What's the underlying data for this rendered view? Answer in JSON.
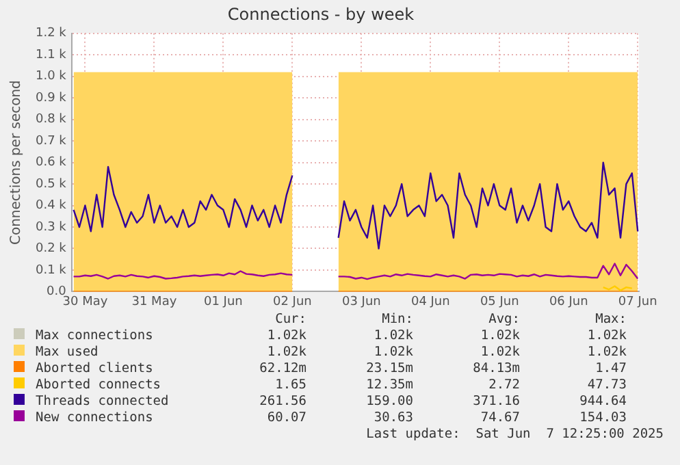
{
  "chart_data": {
    "type": "line",
    "title": "Connections - by week",
    "ylabel": "Connections per second",
    "x": [
      "2025-05-30T08:00",
      "2025-05-30T10:00",
      "2025-05-30T12:00",
      "2025-05-30T14:00",
      "2025-05-30T16:00",
      "2025-05-30T18:00",
      "2025-05-30T20:00",
      "2025-05-30T22:00",
      "2025-05-31T00:00",
      "2025-05-31T02:00",
      "2025-05-31T04:00",
      "2025-05-31T06:00",
      "2025-05-31T08:00",
      "2025-05-31T10:00",
      "2025-05-31T12:00",
      "2025-05-31T14:00",
      "2025-05-31T16:00",
      "2025-05-31T18:00",
      "2025-05-31T20:00",
      "2025-05-31T22:00",
      "2025-06-01T00:00",
      "2025-06-01T02:00",
      "2025-06-01T04:00",
      "2025-06-01T06:00",
      "2025-06-01T08:00",
      "2025-06-01T10:00",
      "2025-06-01T12:00",
      "2025-06-01T14:00",
      "2025-06-01T16:00",
      "2025-06-01T18:00",
      "2025-06-01T20:00",
      "2025-06-01T22:00",
      "2025-06-02T00:00",
      "2025-06-02T02:00",
      "2025-06-02T04:00",
      "2025-06-02T06:00",
      "2025-06-02T08:00",
      "2025-06-02T10:00",
      "2025-06-02T12:00",
      "2025-06-02T14:00",
      "2025-06-02T16:00",
      "2025-06-02T18:00",
      "2025-06-02T20:00",
      "2025-06-02T22:00",
      "2025-06-03T00:00",
      "2025-06-03T02:00",
      "2025-06-03T04:00",
      "2025-06-03T06:00",
      "2025-06-03T08:00",
      "2025-06-03T10:00",
      "2025-06-03T12:00",
      "2025-06-03T14:00",
      "2025-06-03T16:00",
      "2025-06-03T18:00",
      "2025-06-03T20:00",
      "2025-06-03T22:00",
      "2025-06-04T00:00",
      "2025-06-04T02:00",
      "2025-06-04T04:00",
      "2025-06-04T06:00",
      "2025-06-04T08:00",
      "2025-06-04T10:00",
      "2025-06-04T12:00",
      "2025-06-04T14:00",
      "2025-06-04T16:00",
      "2025-06-04T18:00",
      "2025-06-04T20:00",
      "2025-06-04T22:00",
      "2025-06-05T00:00",
      "2025-06-05T02:00",
      "2025-06-05T04:00",
      "2025-06-05T06:00",
      "2025-06-05T08:00",
      "2025-06-05T10:00",
      "2025-06-05T12:00",
      "2025-06-05T14:00",
      "2025-06-05T16:00",
      "2025-06-05T18:00",
      "2025-06-05T20:00",
      "2025-06-05T22:00",
      "2025-06-06T00:00",
      "2025-06-06T02:00",
      "2025-06-06T04:00",
      "2025-06-06T06:00",
      "2025-06-06T08:00",
      "2025-06-06T10:00",
      "2025-06-06T12:00",
      "2025-06-06T14:00",
      "2025-06-06T16:00",
      "2025-06-06T18:00",
      "2025-06-06T20:00",
      "2025-06-06T22:00",
      "2025-06-07T00:00",
      "2025-06-07T02:00",
      "2025-06-07T04:00",
      "2025-06-07T06:00",
      "2025-06-07T08:00",
      "2025-06-07T10:00",
      "2025-06-07T12:00"
    ],
    "series": [
      {
        "name": "Max connections",
        "color": "#ccccbb",
        "type": "line",
        "values": [
          null,
          null,
          null,
          null,
          null,
          null,
          null,
          null,
          null,
          null,
          null,
          null,
          null,
          null,
          null,
          null,
          null,
          null,
          null,
          null,
          null,
          null,
          null,
          null,
          null,
          null,
          null,
          null,
          null,
          null,
          null,
          null,
          null,
          null,
          null,
          null,
          null,
          null,
          null,
          null,
          null,
          null,
          null,
          null,
          null,
          null,
          null,
          null,
          null,
          null,
          null,
          null,
          null,
          null,
          null,
          null,
          null,
          null,
          null,
          null,
          null,
          null,
          null,
          null,
          null,
          null,
          null,
          null,
          null,
          null,
          null,
          null,
          null,
          null,
          null,
          null,
          null,
          null,
          null,
          null,
          null,
          null,
          null,
          null,
          null,
          null,
          null,
          null,
          null,
          null,
          null,
          null,
          null,
          null,
          null,
          null,
          null,
          null,
          null
        ]
      },
      {
        "name": "Max used",
        "color": "#ffd660",
        "type": "area",
        "values": [
          1020,
          1020,
          1020,
          1020,
          1020,
          1020,
          1020,
          1020,
          1020,
          1020,
          1020,
          1020,
          1020,
          1020,
          1020,
          1020,
          1020,
          1020,
          1020,
          1020,
          1020,
          1020,
          1020,
          1020,
          1020,
          1020,
          1020,
          1020,
          1020,
          1020,
          1020,
          1020,
          1020,
          1020,
          1020,
          1020,
          1020,
          1020,
          1020,
          null,
          null,
          null,
          null,
          null,
          null,
          null,
          1020,
          1020,
          1020,
          1020,
          1020,
          1020,
          1020,
          1020,
          1020,
          1020,
          1020,
          1020,
          1020,
          1020,
          1020,
          1020,
          1020,
          1020,
          1020,
          1020,
          1020,
          1020,
          1020,
          1020,
          1020,
          1020,
          1020,
          1020,
          1020,
          1020,
          1020,
          1020,
          1020,
          1020,
          1020,
          1020,
          1020,
          1020,
          1020,
          1020,
          1020,
          1020,
          1020,
          1020,
          1020,
          1020,
          1020,
          1020,
          1020,
          1020,
          1020,
          1020,
          1020
        ]
      },
      {
        "name": "Aborted clients",
        "color": "#ff7f00",
        "type": "line",
        "values": [
          0,
          0,
          0,
          0,
          0,
          0,
          0,
          0,
          0,
          0,
          0,
          0,
          0,
          0,
          0,
          0,
          0,
          0,
          0,
          0,
          0,
          0,
          0,
          0,
          0,
          0,
          0,
          0,
          0,
          0,
          0,
          0,
          0,
          0,
          0,
          0,
          0,
          0,
          0,
          null,
          null,
          null,
          null,
          null,
          null,
          null,
          0,
          0,
          0,
          0,
          0,
          0,
          0,
          0,
          0,
          0,
          0,
          0,
          0,
          0,
          0,
          0,
          0,
          0,
          0,
          0,
          0,
          0,
          0,
          0,
          0,
          0,
          0,
          0,
          0,
          0,
          0,
          0,
          0,
          0,
          0,
          0,
          0,
          0,
          0,
          0,
          0,
          0,
          0,
          0,
          0,
          0,
          0,
          0,
          0,
          0,
          0,
          0,
          0
        ]
      },
      {
        "name": "Aborted connects",
        "color": "#ffcc00",
        "type": "line",
        "values": [
          null,
          null,
          null,
          null,
          null,
          null,
          null,
          null,
          null,
          null,
          null,
          null,
          null,
          null,
          null,
          null,
          null,
          null,
          null,
          null,
          null,
          null,
          null,
          null,
          null,
          null,
          null,
          null,
          null,
          null,
          null,
          null,
          null,
          null,
          null,
          null,
          null,
          null,
          null,
          null,
          null,
          null,
          null,
          null,
          null,
          null,
          null,
          null,
          null,
          null,
          null,
          null,
          null,
          null,
          null,
          null,
          null,
          null,
          null,
          null,
          null,
          null,
          null,
          null,
          null,
          null,
          null,
          null,
          null,
          null,
          null,
          null,
          null,
          null,
          null,
          null,
          null,
          null,
          null,
          null,
          null,
          null,
          null,
          null,
          null,
          null,
          null,
          null,
          null,
          null,
          null,
          null,
          20,
          10,
          25,
          5,
          20,
          15,
          null
        ]
      },
      {
        "name": "Threads connected",
        "color": "#330099",
        "type": "line",
        "values": [
          380,
          300,
          400,
          280,
          450,
          300,
          580,
          450,
          380,
          300,
          370,
          320,
          350,
          450,
          320,
          400,
          320,
          350,
          300,
          380,
          300,
          320,
          420,
          380,
          450,
          400,
          380,
          300,
          430,
          380,
          300,
          400,
          330,
          380,
          300,
          400,
          320,
          450,
          540,
          null,
          null,
          null,
          null,
          null,
          null,
          null,
          250,
          420,
          330,
          380,
          300,
          250,
          400,
          200,
          400,
          350,
          400,
          500,
          350,
          380,
          400,
          350,
          550,
          420,
          450,
          400,
          250,
          550,
          450,
          400,
          300,
          480,
          400,
          500,
          400,
          380,
          480,
          320,
          400,
          330,
          400,
          500,
          300,
          280,
          500,
          380,
          420,
          350,
          300,
          280,
          320,
          250,
          600,
          450,
          480,
          250,
          500,
          550,
          280
        ]
      },
      {
        "name": "New connections",
        "color": "#990099",
        "type": "line",
        "values": [
          70,
          70,
          75,
          72,
          78,
          70,
          60,
          72,
          75,
          70,
          78,
          72,
          70,
          65,
          72,
          68,
          60,
          62,
          65,
          70,
          72,
          75,
          72,
          75,
          78,
          80,
          75,
          85,
          80,
          95,
          82,
          80,
          75,
          72,
          78,
          80,
          85,
          80,
          78,
          null,
          null,
          null,
          null,
          null,
          null,
          null,
          70,
          70,
          68,
          60,
          65,
          58,
          65,
          70,
          75,
          70,
          80,
          75,
          82,
          78,
          75,
          72,
          70,
          80,
          75,
          70,
          75,
          70,
          60,
          78,
          80,
          75,
          78,
          75,
          82,
          80,
          78,
          70,
          75,
          72,
          80,
          70,
          78,
          75,
          72,
          70,
          72,
          70,
          68,
          68,
          65,
          65,
          120,
          80,
          130,
          75,
          125,
          95,
          60
        ]
      }
    ],
    "xlim": [
      "2025-05-30T07:20",
      "2025-06-07T12:25"
    ],
    "xticks": [
      {
        "value": "2025-05-30T12:00",
        "label": "30 May"
      },
      {
        "value": "2025-05-31T12:00",
        "label": "31 May"
      },
      {
        "value": "2025-06-01T12:00",
        "label": "01 Jun"
      },
      {
        "value": "2025-06-02T12:00",
        "label": "02 Jun"
      },
      {
        "value": "2025-06-03T12:00",
        "label": "03 Jun"
      },
      {
        "value": "2025-06-04T12:00",
        "label": "04 Jun"
      },
      {
        "value": "2025-06-05T12:00",
        "label": "05 Jun"
      },
      {
        "value": "2025-06-06T12:00",
        "label": "06 Jun"
      },
      {
        "value": "2025-06-07T12:00",
        "label": "07 Jun"
      }
    ],
    "ylim": [
      0,
      1200
    ],
    "yticks": [
      {
        "value": 0,
        "label": "0.0"
      },
      {
        "value": 100,
        "label": "0.1 k"
      },
      {
        "value": 200,
        "label": "0.2 k"
      },
      {
        "value": 300,
        "label": "0.3 k"
      },
      {
        "value": 400,
        "label": "0.4 k"
      },
      {
        "value": 500,
        "label": "0.5 k"
      },
      {
        "value": 600,
        "label": "0.6 k"
      },
      {
        "value": 700,
        "label": "0.7 k"
      },
      {
        "value": 800,
        "label": "0.8 k"
      },
      {
        "value": 900,
        "label": "0.9 k"
      },
      {
        "value": 1000,
        "label": "1.0 k"
      },
      {
        "value": 1100,
        "label": "1.1 k"
      },
      {
        "value": 1200,
        "label": "1.2 k"
      }
    ],
    "grid": true,
    "legend": "bottom",
    "marker": "none",
    "line_style": "solid",
    "annotations": [
      "Cur:",
      "Min:",
      "Avg:",
      "Max:",
      "1.02k",
      "1.02k",
      "1.02k",
      "1.02k",
      "1.02k",
      "1.02k",
      "1.02k",
      "1.02k",
      "62.12m",
      "23.15m",
      "84.13m",
      "1.47",
      "1.65",
      "12.35m",
      "2.72",
      "47.73",
      "261.56",
      "159.00",
      "371.16",
      "944.64",
      "60.07",
      "30.63",
      "74.67",
      "154.03",
      "Last update:  Sat Jun  7 12:25:00 2025"
    ]
  }
}
